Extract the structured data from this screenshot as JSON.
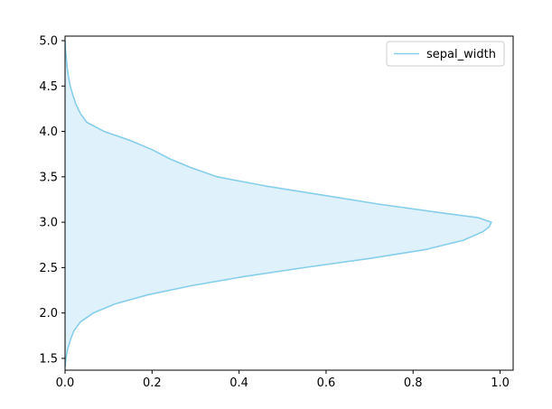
{
  "chart_data": {
    "type": "area",
    "orientation": "horizontal",
    "title": "",
    "xlabel": "",
    "ylabel": "",
    "xlim": [
      0,
      1.03
    ],
    "ylim": [
      1.37,
      5.05
    ],
    "x_ticks": [
      "0.0",
      "0.2",
      "0.4",
      "0.6",
      "0.8",
      "1.0"
    ],
    "y_ticks": [
      "1.5",
      "2.0",
      "2.5",
      "3.0",
      "3.5",
      "4.0",
      "4.5",
      "5.0"
    ],
    "grid": false,
    "legend_position": "top-right",
    "series": [
      {
        "name": "sepal_width",
        "color": "#87ceeb",
        "fill_color": "#dff1fa",
        "y": [
          1.4,
          1.5,
          1.6,
          1.7,
          1.8,
          1.9,
          2.0,
          2.1,
          2.2,
          2.3,
          2.4,
          2.5,
          2.6,
          2.7,
          2.8,
          2.9,
          2.95,
          3.0,
          3.05,
          3.1,
          3.2,
          3.3,
          3.4,
          3.5,
          3.6,
          3.7,
          3.8,
          3.9,
          4.0,
          4.1,
          4.2,
          4.3,
          4.4,
          4.5,
          4.6,
          4.7,
          4.8,
          4.9,
          5.0
        ],
        "x": [
          0.0,
          0.002,
          0.006,
          0.012,
          0.02,
          0.035,
          0.065,
          0.115,
          0.19,
          0.29,
          0.41,
          0.55,
          0.7,
          0.83,
          0.915,
          0.962,
          0.975,
          0.98,
          0.95,
          0.87,
          0.72,
          0.59,
          0.46,
          0.35,
          0.29,
          0.24,
          0.2,
          0.15,
          0.09,
          0.05,
          0.035,
          0.025,
          0.018,
          0.012,
          0.008,
          0.005,
          0.003,
          0.001,
          0.0
        ]
      }
    ]
  }
}
